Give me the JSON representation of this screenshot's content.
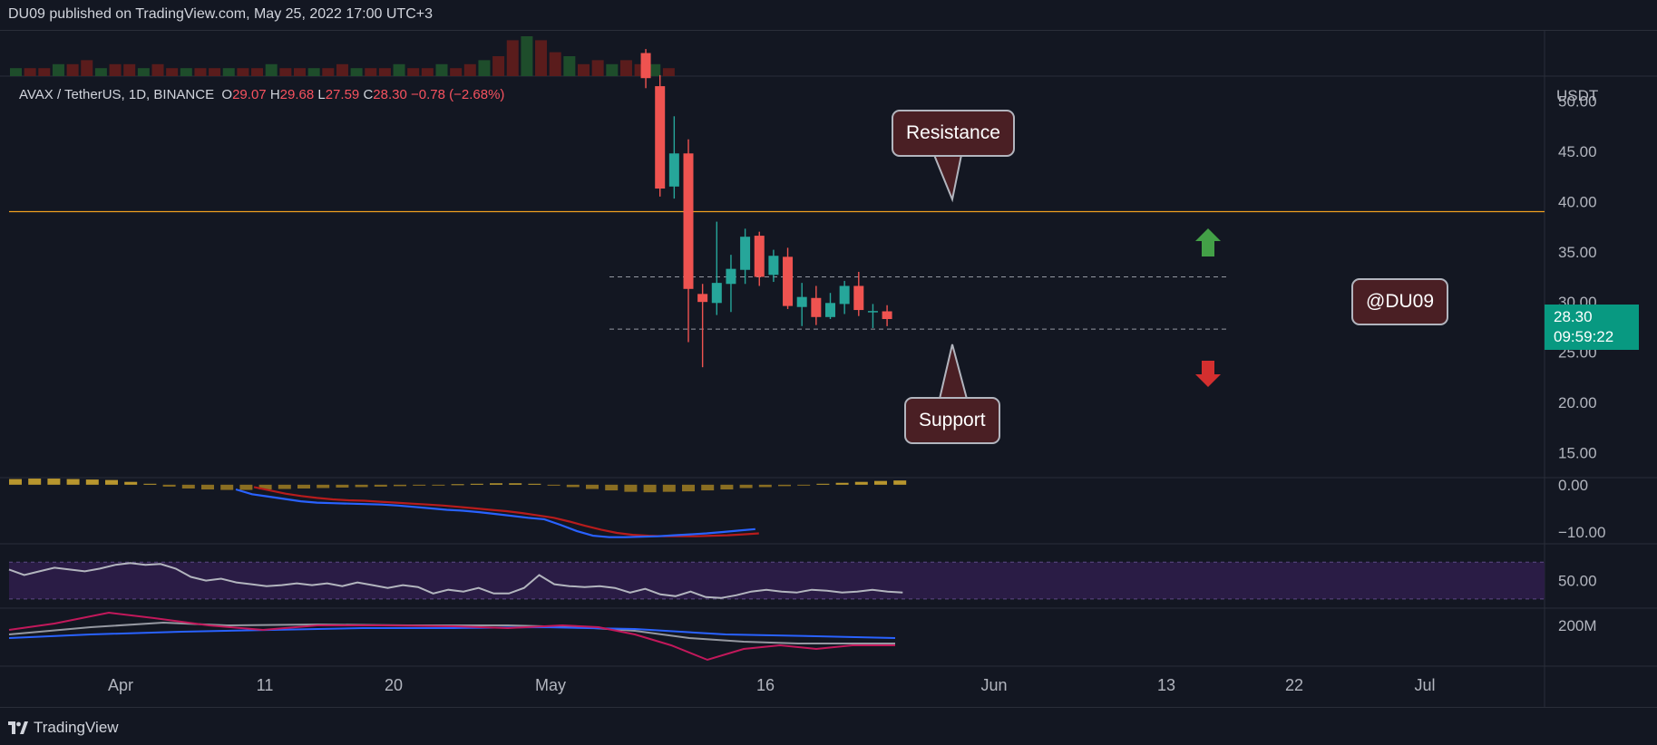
{
  "header": {
    "publisher_text": "DU09 published on TradingView.com, May 25, 2022 17:00 UTC+3"
  },
  "legend": {
    "symbol": "AVAX / TetherUS, 1D, BINANCE",
    "open_label": "O",
    "open": "29.07",
    "high_label": "H",
    "high": "29.68",
    "low_label": "L",
    "low": "27.59",
    "close_label": "C",
    "close": "28.30",
    "change": "−0.78 (−2.68%)"
  },
  "annotations": {
    "resistance": "Resistance",
    "support": "Support",
    "author": "@DU09"
  },
  "price_tag": {
    "price": "28.30",
    "countdown": "09:59:22"
  },
  "footer": {
    "brand": "TradingView"
  },
  "colors": {
    "up": "#26a69a",
    "down": "#ef5350",
    "resistance_line": "#f0a020",
    "macd": "#2962ff",
    "signal": "#b71c1c",
    "rsi": "#b2b5be",
    "rsi_band": "#2a1c45"
  },
  "chart_data": {
    "type": "candlestick",
    "currency_label": "USDT",
    "x_tick_labels": [
      "Apr",
      "11",
      "20",
      "May",
      "16",
      "Jun",
      "13",
      "22",
      "Jul"
    ],
    "y_tick_labels": [
      "50.00",
      "45.00",
      "40.00",
      "35.00",
      "30.00",
      "25.00",
      "20.00",
      "15.00"
    ],
    "ylim": [
      12.5,
      52.5
    ],
    "resistance_level": 39.0,
    "range_levels": [
      32.5,
      27.3
    ],
    "candles": [
      {
        "date": "2022-05-08",
        "o": 54.8,
        "h": 55.2,
        "l": 51.3,
        "c": 52.3
      },
      {
        "date": "2022-05-09",
        "o": 51.5,
        "h": 52.6,
        "l": 40.5,
        "c": 41.3
      },
      {
        "date": "2022-05-10",
        "o": 41.5,
        "h": 48.5,
        "l": 40.3,
        "c": 44.8
      },
      {
        "date": "2022-05-11",
        "o": 44.8,
        "h": 46.2,
        "l": 26.0,
        "c": 31.3
      },
      {
        "date": "2022-05-12",
        "o": 30.8,
        "h": 31.8,
        "l": 23.5,
        "c": 30.0
      },
      {
        "date": "2022-05-13",
        "o": 29.9,
        "h": 38.0,
        "l": 28.7,
        "c": 31.9
      },
      {
        "date": "2022-05-14",
        "o": 31.8,
        "h": 34.7,
        "l": 29.0,
        "c": 33.3
      },
      {
        "date": "2022-05-15",
        "o": 33.2,
        "h": 37.3,
        "l": 31.8,
        "c": 36.5
      },
      {
        "date": "2022-05-16",
        "o": 36.6,
        "h": 37.0,
        "l": 31.6,
        "c": 32.5
      },
      {
        "date": "2022-05-17",
        "o": 32.7,
        "h": 35.2,
        "l": 32.0,
        "c": 34.6
      },
      {
        "date": "2022-05-18",
        "o": 34.5,
        "h": 35.4,
        "l": 29.3,
        "c": 29.6
      },
      {
        "date": "2022-05-19",
        "o": 29.5,
        "h": 31.9,
        "l": 27.6,
        "c": 30.5
      },
      {
        "date": "2022-05-20",
        "o": 30.4,
        "h": 31.6,
        "l": 27.7,
        "c": 28.5
      },
      {
        "date": "2022-05-21",
        "o": 28.5,
        "h": 30.9,
        "l": 28.3,
        "c": 29.9
      },
      {
        "date": "2022-05-22",
        "o": 29.8,
        "h": 32.1,
        "l": 28.8,
        "c": 31.6
      },
      {
        "date": "2022-05-23",
        "o": 31.6,
        "h": 33.0,
        "l": 28.6,
        "c": 29.2
      },
      {
        "date": "2022-05-24",
        "o": 29.0,
        "h": 29.8,
        "l": 27.4,
        "c": 29.1
      },
      {
        "date": "2022-05-25",
        "o": 29.07,
        "h": 29.68,
        "l": 27.59,
        "c": 28.3
      }
    ],
    "volume": [
      2,
      2,
      2,
      3,
      3,
      4,
      2,
      3,
      3,
      2,
      3,
      2,
      2,
      2,
      2,
      2,
      2,
      2,
      3,
      2,
      2,
      2,
      2,
      3,
      2,
      2,
      2,
      3,
      2,
      2,
      3,
      2,
      3,
      4,
      5,
      9,
      10,
      9,
      6,
      5,
      3,
      4,
      3,
      4,
      3,
      3,
      2
    ],
    "macd_indicator": {
      "y_tick_labels": [
        "0.00",
        "−10.00"
      ],
      "ylim": [
        -12.5,
        1.5
      ],
      "histogram": [
        1.2,
        1.3,
        1.3,
        1.2,
        1.1,
        1.0,
        0.6,
        0.2,
        -0.4,
        -0.8,
        -1.0,
        -1.1,
        -1.1,
        -1.0,
        -0.9,
        -0.8,
        -0.7,
        -0.6,
        -0.5,
        -0.4,
        -0.3,
        -0.2,
        -0.1,
        0.1,
        0.2,
        0.3,
        0.3,
        0.2,
        -0.2,
        -0.5,
        -0.9,
        -1.2,
        -1.5,
        -1.6,
        -1.5,
        -1.4,
        -1.2,
        -1.0,
        -0.7,
        -0.5,
        -0.3,
        -0.1,
        0.2,
        0.4,
        0.6,
        0.8,
        0.9
      ],
      "macd": [
        0,
        0,
        0,
        0,
        0,
        0,
        0,
        -1,
        -2,
        -2.5,
        -3,
        -3.5,
        -3.8,
        -3.9,
        -4.0,
        -4.1,
        -4.2,
        -4.4,
        -4.7,
        -5.0,
        -5.3,
        -5.5,
        -5.8,
        -6.2,
        -6.6,
        -7.0,
        -7.3,
        -8.5,
        -9.8,
        -10.8,
        -11.1,
        -11.1,
        -11.0,
        -10.9,
        -10.7,
        -10.5,
        -10.3,
        -10.0,
        -9.7,
        -9.4
      ],
      "signal": [
        0,
        0,
        0,
        0,
        0,
        0,
        0,
        -0.5,
        -1.2,
        -1.9,
        -2.4,
        -2.8,
        -3.1,
        -3.3,
        -3.4,
        -3.6,
        -3.8,
        -4.0,
        -4.2,
        -4.4,
        -4.7,
        -5.0,
        -5.3,
        -5.6,
        -6.0,
        -6.5,
        -7.0,
        -7.8,
        -8.7,
        -9.5,
        -10.2,
        -10.6,
        -10.8,
        -10.9,
        -10.9,
        -10.9,
        -10.8,
        -10.7,
        -10.5,
        -10.3
      ]
    },
    "rsi_indicator": {
      "y_tick_labels": [
        "50.00"
      ],
      "ylim": [
        20,
        90
      ],
      "band": [
        30,
        70
      ],
      "values": [
        62,
        56,
        60,
        64,
        62,
        60,
        63,
        67,
        69,
        67,
        68,
        63,
        54,
        50,
        52,
        48,
        46,
        44,
        45,
        47,
        45,
        47,
        44,
        48,
        45,
        42,
        45,
        43,
        36,
        40,
        38,
        42,
        36,
        36,
        42,
        56,
        46,
        44,
        43,
        44,
        42,
        37,
        41,
        35,
        33,
        38,
        32,
        31,
        34,
        38,
        40,
        38,
        37,
        40,
        39,
        37,
        38,
        40,
        38,
        37
      ]
    },
    "volume_indicator": {
      "y_tick_labels": [
        "200M"
      ]
    }
  }
}
